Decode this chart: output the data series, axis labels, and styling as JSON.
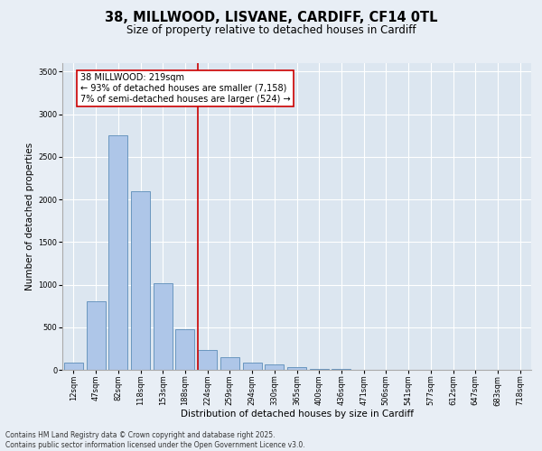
{
  "title_line1": "38, MILLWOOD, LISVANE, CARDIFF, CF14 0TL",
  "title_line2": "Size of property relative to detached houses in Cardiff",
  "xlabel": "Distribution of detached houses by size in Cardiff",
  "ylabel": "Number of detached properties",
  "categories": [
    "12sqm",
    "47sqm",
    "82sqm",
    "118sqm",
    "153sqm",
    "188sqm",
    "224sqm",
    "259sqm",
    "294sqm",
    "330sqm",
    "365sqm",
    "400sqm",
    "436sqm",
    "471sqm",
    "506sqm",
    "541sqm",
    "577sqm",
    "612sqm",
    "647sqm",
    "683sqm",
    "718sqm"
  ],
  "values": [
    80,
    800,
    2750,
    2100,
    1020,
    480,
    230,
    150,
    90,
    60,
    30,
    15,
    8,
    5,
    3,
    2,
    1,
    1,
    0,
    0,
    0
  ],
  "bar_color": "#aec6e8",
  "bar_edge_color": "#5b8db8",
  "vline_color": "#cc0000",
  "annotation_text": "38 MILLWOOD: 219sqm\n← 93% of detached houses are smaller (7,158)\n7% of semi-detached houses are larger (524) →",
  "annotation_box_color": "#ffffff",
  "annotation_box_edge_color": "#cc0000",
  "ylim": [
    0,
    3600
  ],
  "yticks": [
    0,
    500,
    1000,
    1500,
    2000,
    2500,
    3000,
    3500
  ],
  "background_color": "#e8eef5",
  "plot_background_color": "#dce6f0",
  "footer_line1": "Contains HM Land Registry data © Crown copyright and database right 2025.",
  "footer_line2": "Contains public sector information licensed under the Open Government Licence v3.0.",
  "title_fontsize": 10.5,
  "subtitle_fontsize": 8.5,
  "axis_label_fontsize": 7.5,
  "tick_fontsize": 6,
  "annotation_fontsize": 7,
  "footer_fontsize": 5.5
}
